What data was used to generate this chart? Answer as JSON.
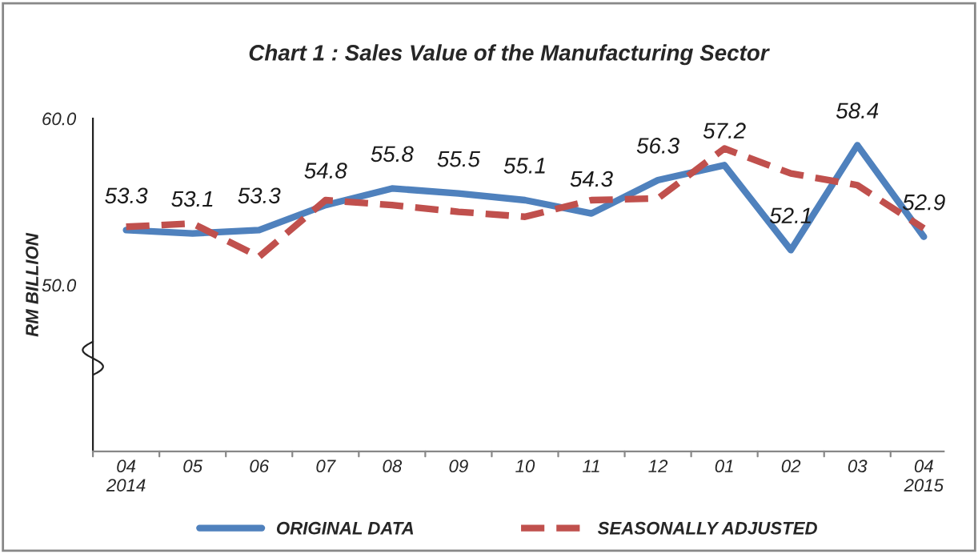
{
  "chart_data": {
    "type": "line",
    "title": "Chart 1 : Sales Value of the Manufacturing Sector",
    "ylabel": "RM BILLION",
    "categories": [
      "04\n2014",
      "05",
      "06",
      "07",
      "08",
      "09",
      "10",
      "11",
      "12",
      "01",
      "02",
      "03",
      "04\n2015"
    ],
    "series": [
      {
        "name": "ORIGINAL DATA",
        "color": "#4f81bd",
        "line_style": "solid",
        "values": [
          53.3,
          53.1,
          53.3,
          54.8,
          55.8,
          55.5,
          55.1,
          54.3,
          56.3,
          57.2,
          52.1,
          58.4,
          52.9
        ],
        "value_labels": [
          "53.3",
          "53.1",
          "53.3",
          "54.8",
          "55.8",
          "55.5",
          "55.1",
          "54.3",
          "56.3",
          "57.2",
          "52.1",
          "58.4",
          "52.9"
        ]
      },
      {
        "name": "SEASONALLY ADJUSTED",
        "color": "#c0504d",
        "line_style": "dashed",
        "values": [
          53.5,
          53.7,
          51.7,
          55.1,
          54.8,
          54.4,
          54.1,
          55.1,
          55.2,
          58.2,
          56.7,
          56.0,
          53.4
        ]
      }
    ],
    "ylim": [
      40,
      60
    ],
    "yticks": [
      {
        "value": 50,
        "label": "50.0"
      },
      {
        "value": 60,
        "label": "60.0"
      }
    ],
    "grid": false,
    "legend": "bottom",
    "marker": "none"
  }
}
